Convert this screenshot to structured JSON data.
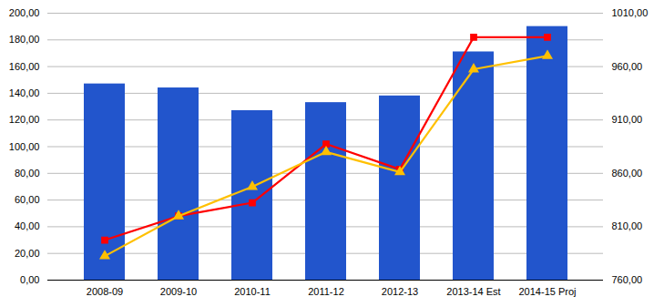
{
  "chart_data": {
    "type": "bar",
    "categories": [
      "2008-09",
      "2009-10",
      "2010-11",
      "2011-12",
      "2012-13",
      "2013-14 Est",
      "2014-15 Proj"
    ],
    "series": [
      {
        "type": "bar",
        "color": "#2255CC",
        "values": [
          147,
          144,
          127,
          133,
          138,
          171,
          190
        ]
      },
      {
        "type": "line",
        "color": "#FF0000",
        "marker": "square",
        "values": [
          30,
          48,
          58,
          102,
          83,
          182,
          182
        ]
      },
      {
        "type": "line",
        "color": "#FFC000",
        "marker": "triangle",
        "values": [
          18,
          48,
          70,
          96,
          81,
          158,
          168
        ]
      }
    ],
    "ylim": [
      0,
      200
    ],
    "yticks": [
      {
        "value": 0,
        "label": "0,00"
      },
      {
        "value": 20,
        "label": "20,00"
      },
      {
        "value": 40,
        "label": "40,00"
      },
      {
        "value": 60,
        "label": "60,00"
      },
      {
        "value": 80,
        "label": "80,00"
      },
      {
        "value": 100,
        "label": "100,00"
      },
      {
        "value": 120,
        "label": "120,00"
      },
      {
        "value": 140,
        "label": "140,00"
      },
      {
        "value": 160,
        "label": "160,00"
      },
      {
        "value": 180,
        "label": "180,00"
      },
      {
        "value": 200,
        "label": "200,00"
      }
    ],
    "y2lim": [
      760,
      1010
    ],
    "y2ticks": [
      {
        "value": 760,
        "label": "760,00"
      },
      {
        "value": 810,
        "label": "810,00"
      },
      {
        "value": 860,
        "label": "860,00"
      },
      {
        "value": 910,
        "label": "910,00"
      },
      {
        "value": 960,
        "label": "960,00"
      },
      {
        "value": 1010,
        "label": "1010,00"
      }
    ],
    "grid": true
  }
}
